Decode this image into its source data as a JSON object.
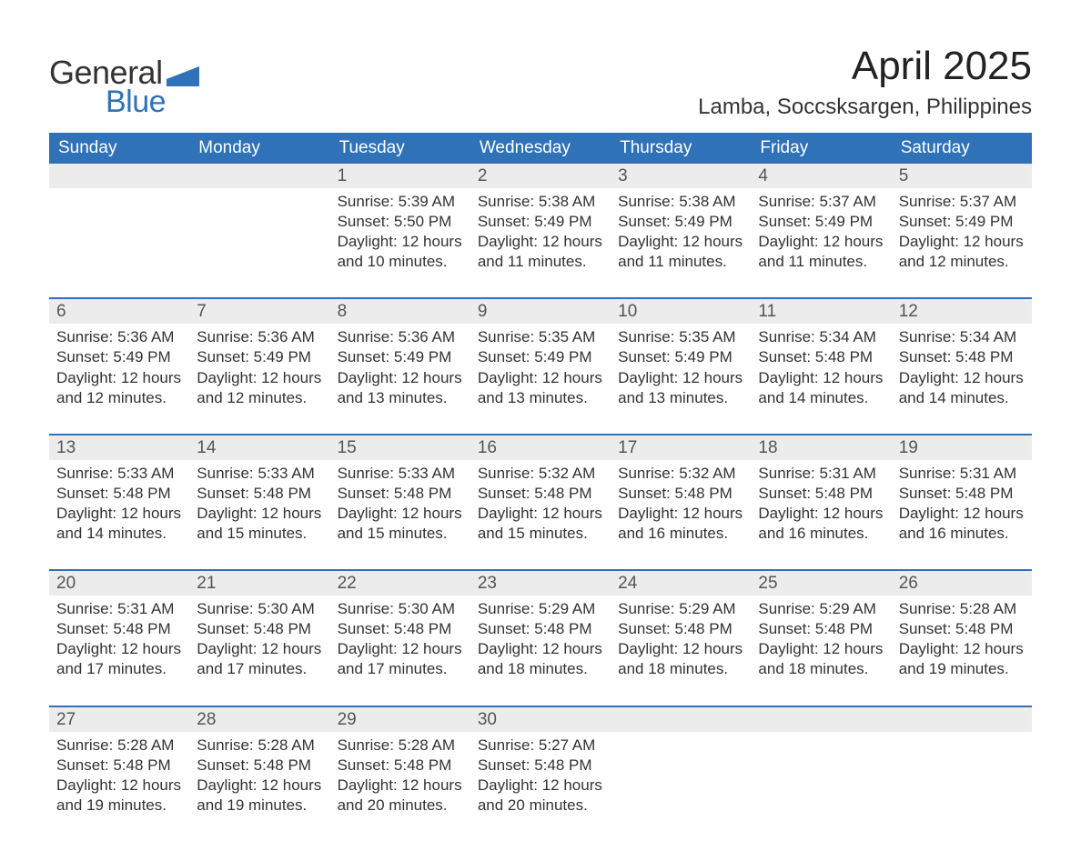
{
  "brand": {
    "word1": "General",
    "word2": "Blue"
  },
  "colors": {
    "accent": "#2f72b8",
    "header_bg": "#2f72b8",
    "daynum_bg": "#ececec"
  },
  "title": "April 2025",
  "location": "Lamba, Soccsksargen, Philippines",
  "columns": [
    "Sunday",
    "Monday",
    "Tuesday",
    "Wednesday",
    "Thursday",
    "Friday",
    "Saturday"
  ],
  "calendar": {
    "type": "table",
    "first_weekday_index": 2,
    "days_in_month": 30,
    "weeks": [
      [
        null,
        null,
        {
          "n": "1",
          "sunrise": "5:39 AM",
          "sunset": "5:50 PM",
          "daylight": "12 hours and 10 minutes."
        },
        {
          "n": "2",
          "sunrise": "5:38 AM",
          "sunset": "5:49 PM",
          "daylight": "12 hours and 11 minutes."
        },
        {
          "n": "3",
          "sunrise": "5:38 AM",
          "sunset": "5:49 PM",
          "daylight": "12 hours and 11 minutes."
        },
        {
          "n": "4",
          "sunrise": "5:37 AM",
          "sunset": "5:49 PM",
          "daylight": "12 hours and 11 minutes."
        },
        {
          "n": "5",
          "sunrise": "5:37 AM",
          "sunset": "5:49 PM",
          "daylight": "12 hours and 12 minutes."
        }
      ],
      [
        {
          "n": "6",
          "sunrise": "5:36 AM",
          "sunset": "5:49 PM",
          "daylight": "12 hours and 12 minutes."
        },
        {
          "n": "7",
          "sunrise": "5:36 AM",
          "sunset": "5:49 PM",
          "daylight": "12 hours and 12 minutes."
        },
        {
          "n": "8",
          "sunrise": "5:36 AM",
          "sunset": "5:49 PM",
          "daylight": "12 hours and 13 minutes."
        },
        {
          "n": "9",
          "sunrise": "5:35 AM",
          "sunset": "5:49 PM",
          "daylight": "12 hours and 13 minutes."
        },
        {
          "n": "10",
          "sunrise": "5:35 AM",
          "sunset": "5:49 PM",
          "daylight": "12 hours and 13 minutes."
        },
        {
          "n": "11",
          "sunrise": "5:34 AM",
          "sunset": "5:48 PM",
          "daylight": "12 hours and 14 minutes."
        },
        {
          "n": "12",
          "sunrise": "5:34 AM",
          "sunset": "5:48 PM",
          "daylight": "12 hours and 14 minutes."
        }
      ],
      [
        {
          "n": "13",
          "sunrise": "5:33 AM",
          "sunset": "5:48 PM",
          "daylight": "12 hours and 14 minutes."
        },
        {
          "n": "14",
          "sunrise": "5:33 AM",
          "sunset": "5:48 PM",
          "daylight": "12 hours and 15 minutes."
        },
        {
          "n": "15",
          "sunrise": "5:33 AM",
          "sunset": "5:48 PM",
          "daylight": "12 hours and 15 minutes."
        },
        {
          "n": "16",
          "sunrise": "5:32 AM",
          "sunset": "5:48 PM",
          "daylight": "12 hours and 15 minutes."
        },
        {
          "n": "17",
          "sunrise": "5:32 AM",
          "sunset": "5:48 PM",
          "daylight": "12 hours and 16 minutes."
        },
        {
          "n": "18",
          "sunrise": "5:31 AM",
          "sunset": "5:48 PM",
          "daylight": "12 hours and 16 minutes."
        },
        {
          "n": "19",
          "sunrise": "5:31 AM",
          "sunset": "5:48 PM",
          "daylight": "12 hours and 16 minutes."
        }
      ],
      [
        {
          "n": "20",
          "sunrise": "5:31 AM",
          "sunset": "5:48 PM",
          "daylight": "12 hours and 17 minutes."
        },
        {
          "n": "21",
          "sunrise": "5:30 AM",
          "sunset": "5:48 PM",
          "daylight": "12 hours and 17 minutes."
        },
        {
          "n": "22",
          "sunrise": "5:30 AM",
          "sunset": "5:48 PM",
          "daylight": "12 hours and 17 minutes."
        },
        {
          "n": "23",
          "sunrise": "5:29 AM",
          "sunset": "5:48 PM",
          "daylight": "12 hours and 18 minutes."
        },
        {
          "n": "24",
          "sunrise": "5:29 AM",
          "sunset": "5:48 PM",
          "daylight": "12 hours and 18 minutes."
        },
        {
          "n": "25",
          "sunrise": "5:29 AM",
          "sunset": "5:48 PM",
          "daylight": "12 hours and 18 minutes."
        },
        {
          "n": "26",
          "sunrise": "5:28 AM",
          "sunset": "5:48 PM",
          "daylight": "12 hours and 19 minutes."
        }
      ],
      [
        {
          "n": "27",
          "sunrise": "5:28 AM",
          "sunset": "5:48 PM",
          "daylight": "12 hours and 19 minutes."
        },
        {
          "n": "28",
          "sunrise": "5:28 AM",
          "sunset": "5:48 PM",
          "daylight": "12 hours and 19 minutes."
        },
        {
          "n": "29",
          "sunrise": "5:28 AM",
          "sunset": "5:48 PM",
          "daylight": "12 hours and 20 minutes."
        },
        {
          "n": "30",
          "sunrise": "5:27 AM",
          "sunset": "5:48 PM",
          "daylight": "12 hours and 20 minutes."
        },
        null,
        null,
        null
      ]
    ]
  },
  "labels": {
    "sunrise": "Sunrise:",
    "sunset": "Sunset:",
    "daylight": "Daylight:"
  }
}
